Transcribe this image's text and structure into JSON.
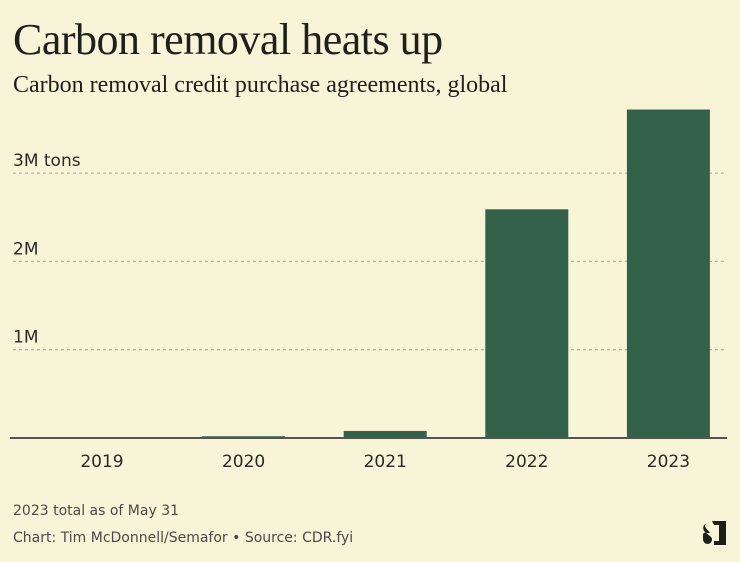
{
  "header": {
    "title": "Carbon removal heats up",
    "subtitle": "Carbon removal credit purchase agreements, global"
  },
  "footer": {
    "note": "2023 total as of May 31",
    "credit": "Chart: Tim McDonnell/Semafor • Source: CDR.fyi",
    "logo_icon": "semafor-s-logo-icon"
  },
  "colors": {
    "background": "#f8f4d8",
    "bar": "#33614a",
    "text": "#1f1f1c",
    "grid": "#b9b7a6",
    "axis": "#55554d"
  },
  "chart_data": {
    "type": "bar",
    "title": "Carbon removal heats up",
    "subtitle": "Carbon removal credit purchase agreements, global",
    "xlabel": "",
    "ylabel": "tons",
    "categories": [
      "2019",
      "2020",
      "2021",
      "2022",
      "2023"
    ],
    "values": [
      0,
      20000,
      80000,
      2590000,
      3720000
    ],
    "units": "tons",
    "ylim": [
      0,
      3720000
    ],
    "yticks": [
      {
        "value": 1000000,
        "label": "1M"
      },
      {
        "value": 2000000,
        "label": "2M"
      },
      {
        "value": 3000000,
        "label": "3M tons"
      }
    ],
    "grid": true,
    "grid_style": "dashed",
    "legend": "none",
    "annotations": [
      "2023 total as of May 31"
    ]
  }
}
